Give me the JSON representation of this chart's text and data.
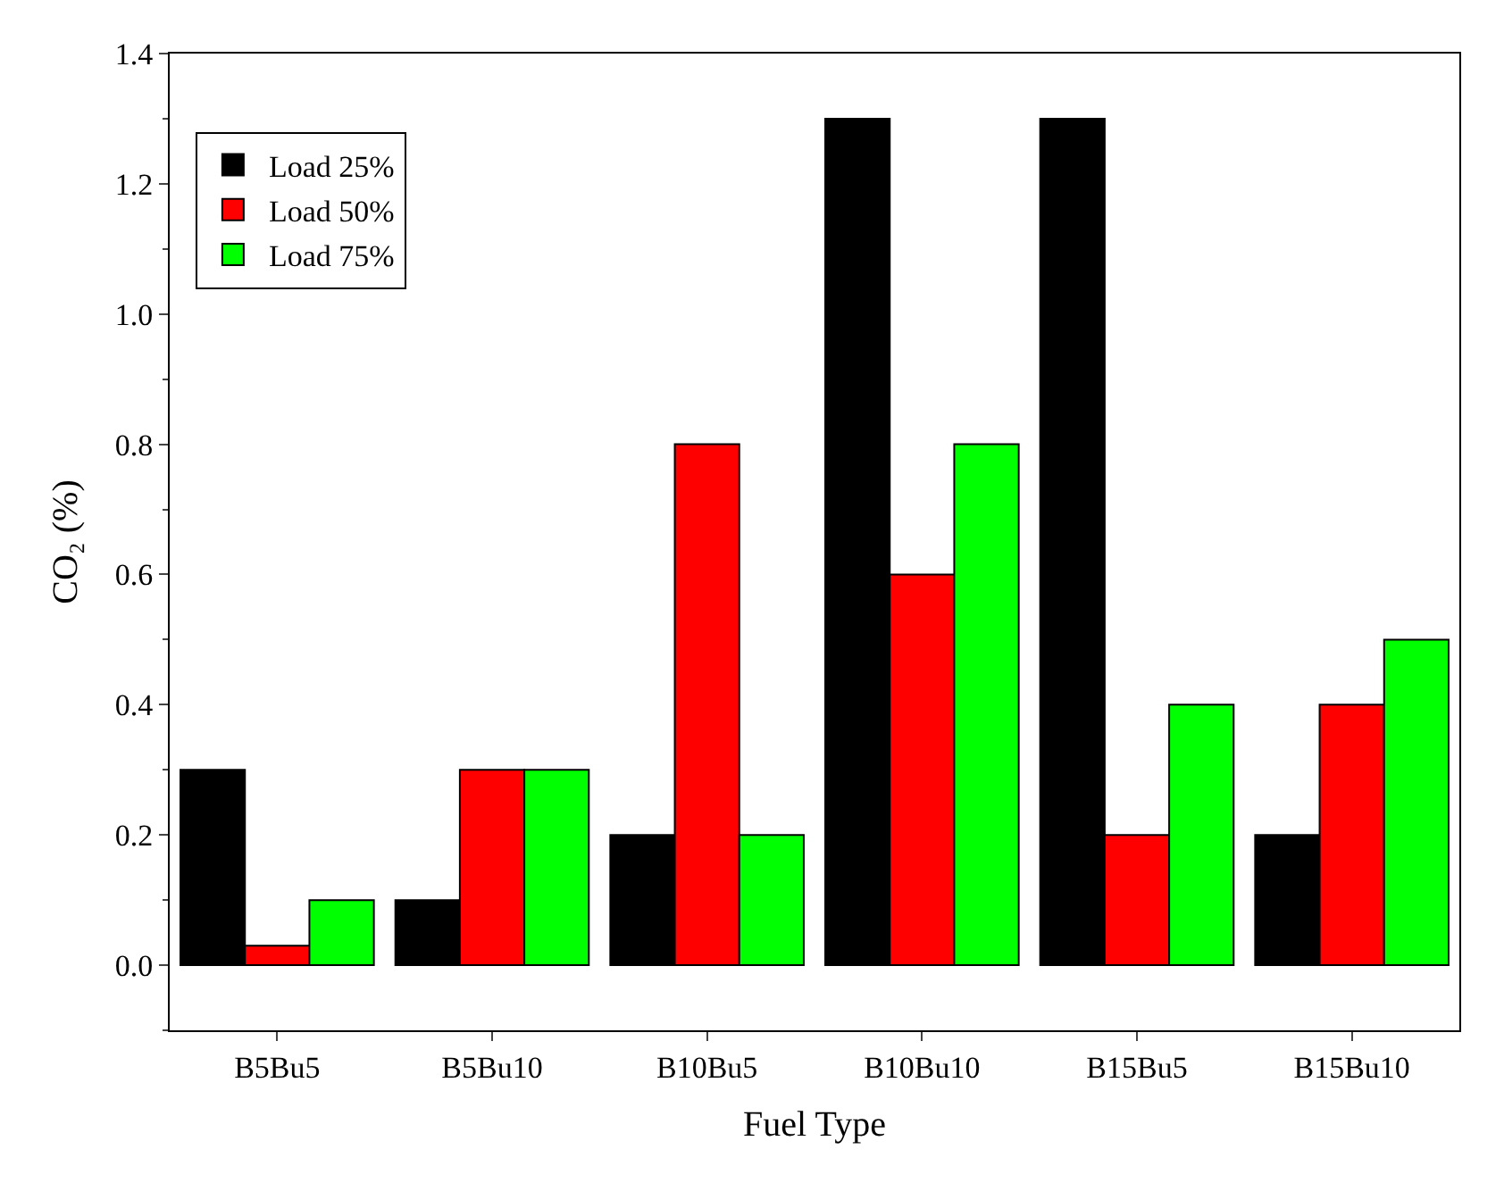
{
  "chart_data": {
    "type": "bar",
    "xlabel": "Fuel Type",
    "ylabel": "CO₂ (%)",
    "categories": [
      "B5Bu5",
      "B5Bu10",
      "B10Bu5",
      "B10Bu10",
      "B15Bu5",
      "B15Bu10"
    ],
    "series": [
      {
        "name": "Load 25%",
        "color": "#000000",
        "values": [
          0.3,
          0.1,
          0.2,
          1.3,
          1.3,
          0.2
        ]
      },
      {
        "name": "Load 50%",
        "color": "#ff0000",
        "values": [
          0.03,
          0.3,
          0.8,
          0.6,
          0.2,
          0.4
        ]
      },
      {
        "name": "Load 75%",
        "color": "#00ff00",
        "values": [
          0.1,
          0.3,
          0.2,
          0.8,
          0.4,
          0.5
        ]
      }
    ],
    "ylim": [
      -0.1,
      1.4
    ],
    "yticks": [
      {
        "value": 0,
        "label": "0.0"
      },
      0.2,
      0.4,
      0.6,
      0.8,
      {
        "value": 1,
        "label": "1.0"
      },
      1.2,
      1.4
    ],
    "legend": "top left"
  }
}
